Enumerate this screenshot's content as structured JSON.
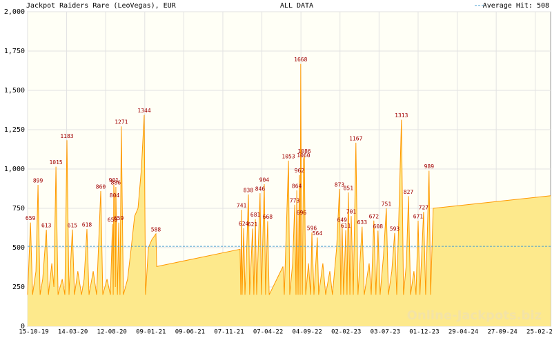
{
  "chart_data": {
    "type": "area",
    "title": "Jackpot Raiders Rare (LeoVegas), EUR",
    "subtitle": "ALL DATA",
    "legend": "Average Hit: 508",
    "average": 508,
    "watermark": "Online-Jackpots.biz",
    "color": "#ff9900",
    "fill": "#fde98c",
    "average_color": "#4a9fd0",
    "grid": true,
    "xlim": [
      0,
      2009
    ],
    "ylim": [
      0,
      2000
    ],
    "yticks": [
      0,
      {
        "value": 250,
        "label": "250"
      },
      500,
      750,
      {
        "value": 1000,
        "label": "1,000"
      },
      {
        "value": 1250,
        "label": "1,250"
      },
      {
        "value": 1500,
        "label": "1,500"
      },
      {
        "value": 1750,
        "label": "1,750"
      },
      {
        "value": 2000,
        "label": "2,000"
      }
    ],
    "xticks": [
      {
        "value": 0,
        "label": "15-10-19"
      },
      {
        "value": 150,
        "label": "14-03-20"
      },
      {
        "value": 300,
        "label": "12-08-20"
      },
      {
        "value": 450,
        "label": "09-01-21"
      },
      {
        "value": 600,
        "label": "09-06-21"
      },
      {
        "value": 750,
        "label": "07-11-21"
      },
      {
        "value": 900,
        "label": "07-04-22"
      },
      {
        "value": 1050,
        "label": "04-09-22"
      },
      {
        "value": 1200,
        "label": "02-02-23"
      },
      {
        "value": 1350,
        "label": "03-07-23"
      },
      {
        "value": 1500,
        "label": "01-12-23"
      },
      {
        "value": 1650,
        "label": "29-04-24"
      },
      {
        "value": 1800,
        "label": "27-09-24"
      },
      {
        "value": 1950,
        "label": "25-02-25"
      }
    ],
    "x": [
      0,
      11,
      19,
      32,
      40,
      48,
      58,
      72,
      80,
      93,
      101,
      109,
      117,
      133,
      143,
      151,
      159,
      172,
      180,
      193,
      207,
      217,
      228,
      236,
      252,
      265,
      281,
      289,
      305,
      318,
      326,
      329,
      331,
      334,
      337,
      339,
      345,
      350,
      355,
      360,
      368,
      384,
      398,
      411,
      424,
      437,
      448,
      453,
      464,
      477,
      493,
      496,
      816,
      819,
      822,
      824,
      830,
      835,
      840,
      848,
      853,
      864,
      869,
      875,
      880,
      893,
      898,
      909,
      914,
      922,
      928,
      981,
      986,
      1002,
      1007,
      1018,
      1026,
      1031,
      1034,
      1039,
      1044,
      1047,
      1049,
      1052,
      1055,
      1060,
      1063,
      1068,
      1079,
      1087,
      1092,
      1100,
      1113,
      1118,
      1134,
      1145,
      1161,
      1171,
      1187,
      1198,
      1203,
      1208,
      1214,
      1222,
      1227,
      1232,
      1238,
      1243,
      1251,
      1261,
      1269,
      1285,
      1293,
      1312,
      1320,
      1330,
      1338,
      1346,
      1354,
      1367,
      1378,
      1386,
      1399,
      1410,
      1418,
      1436,
      1444,
      1455,
      1463,
      1471,
      1484,
      1492,
      1500,
      1507,
      1521,
      1529,
      1542,
      1548,
      1558,
      2009
    ],
    "values": [
      200,
      659,
      200,
      350,
      899,
      200,
      300,
      613,
      200,
      400,
      250,
      1015,
      200,
      300,
      200,
      1183,
      200,
      615,
      200,
      350,
      200,
      300,
      618,
      200,
      350,
      200,
      860,
      200,
      300,
      200,
      650,
      200,
      901,
      804,
      250,
      886,
      200,
      659,
      200,
      1271,
      200,
      300,
      500,
      700,
      750,
      1000,
      1344,
      200,
      500,
      550,
      588,
      380,
      490,
      200,
      741,
      200,
      624,
      200,
      400,
      838,
      200,
      621,
      200,
      681,
      200,
      846,
      200,
      904,
      200,
      668,
      200,
      380,
      200,
      1053,
      200,
      400,
      773,
      200,
      864,
      200,
      962,
      200,
      1668,
      696,
      200,
      1060,
      1086,
      200,
      400,
      200,
      596,
      200,
      564,
      200,
      400,
      200,
      350,
      200,
      500,
      873,
      200,
      649,
      200,
      611,
      200,
      851,
      200,
      701,
      200,
      1167,
      200,
      633,
      200,
      400,
      200,
      672,
      200,
      608,
      200,
      450,
      751,
      200,
      350,
      593,
      200,
      1313,
      200,
      400,
      827,
      200,
      350,
      200,
      671,
      200,
      727,
      200,
      989,
      200,
      750,
      830
    ],
    "value_labels": [
      null,
      "659",
      null,
      null,
      "899",
      null,
      null,
      "613",
      null,
      null,
      null,
      "1015",
      null,
      null,
      null,
      "1183",
      null,
      "615",
      null,
      null,
      null,
      null,
      "618",
      null,
      null,
      null,
      "860",
      null,
      null,
      null,
      "650",
      null,
      "901",
      "804",
      null,
      "886",
      null,
      "659",
      null,
      "1271",
      null,
      null,
      null,
      null,
      null,
      null,
      "1344",
      null,
      null,
      null,
      "588",
      null,
      null,
      null,
      "741",
      null,
      "624",
      null,
      null,
      "838",
      null,
      "621",
      null,
      "681",
      null,
      "846",
      null,
      "904",
      null,
      "668",
      null,
      null,
      null,
      "1053",
      null,
      null,
      "773",
      null,
      "864",
      null,
      "962",
      null,
      "1668",
      "696",
      null,
      "1060",
      "1086",
      null,
      null,
      null,
      "596",
      null,
      "564",
      null,
      null,
      null,
      null,
      null,
      null,
      "873",
      null,
      "649",
      null,
      "611",
      null,
      "851",
      null,
      "701",
      null,
      "1167",
      null,
      "633",
      null,
      null,
      null,
      "672",
      null,
      "608",
      null,
      null,
      "751",
      null,
      null,
      "593",
      null,
      "1313",
      null,
      null,
      "827",
      null,
      null,
      null,
      "671",
      null,
      "727",
      null,
      "989",
      null,
      null,
      null
    ]
  }
}
